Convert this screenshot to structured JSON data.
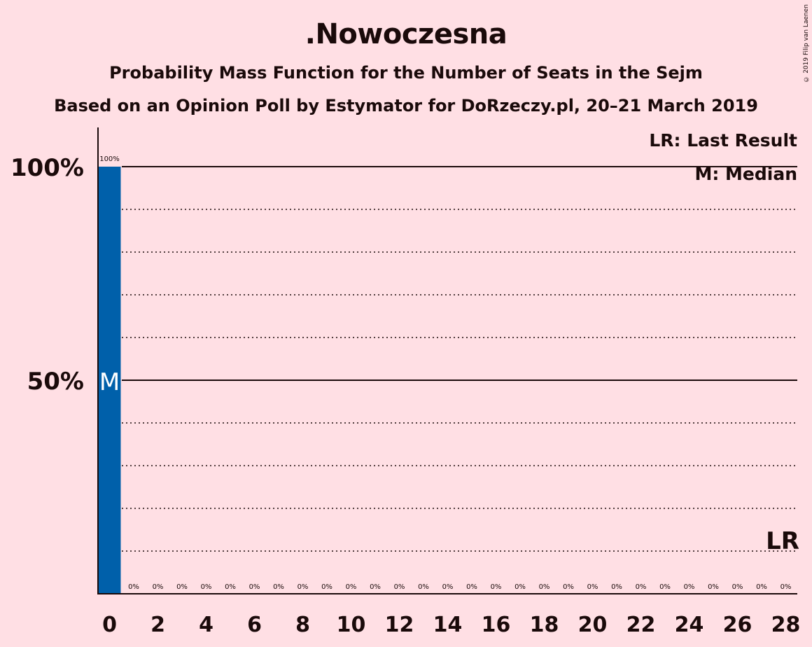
{
  "header": {
    "title": ".Nowoczesna",
    "subtitle": "Probability Mass Function for the Number of Seats in the Sejm",
    "subtitle2": "Based on an Opinion Poll by Estymator for DoRzeczy.pl, 20–21 March 2019",
    "copyright": "© 2019 Filip van Laenen"
  },
  "colors": {
    "background": "#ffdfe4",
    "bar": "#0060aa",
    "text": "#1a0a0a"
  },
  "chart_data": {
    "type": "bar",
    "x": [
      0,
      1,
      2,
      3,
      4,
      5,
      6,
      7,
      8,
      9,
      10,
      11,
      12,
      13,
      14,
      15,
      16,
      17,
      18,
      19,
      20,
      21,
      22,
      23,
      24,
      25,
      26,
      27,
      28
    ],
    "values": [
      100,
      0,
      0,
      0,
      0,
      0,
      0,
      0,
      0,
      0,
      0,
      0,
      0,
      0,
      0,
      0,
      0,
      0,
      0,
      0,
      0,
      0,
      0,
      0,
      0,
      0,
      0,
      0,
      0
    ],
    "value_labels": [
      "100%",
      "0%",
      "0%",
      "0%",
      "0%",
      "0%",
      "0%",
      "0%",
      "0%",
      "0%",
      "0%",
      "0%",
      "0%",
      "0%",
      "0%",
      "0%",
      "0%",
      "0%",
      "0%",
      "0%",
      "0%",
      "0%",
      "0%",
      "0%",
      "0%",
      "0%",
      "0%",
      "0%",
      "0%"
    ],
    "x_tick_labels": [
      "0",
      "2",
      "4",
      "6",
      "8",
      "10",
      "12",
      "14",
      "16",
      "18",
      "20",
      "22",
      "24",
      "26",
      "28"
    ],
    "x_ticks": [
      0,
      2,
      4,
      6,
      8,
      10,
      12,
      14,
      16,
      18,
      20,
      22,
      24,
      26,
      28
    ],
    "y_tick_labels": [
      "50%",
      "100%"
    ],
    "y_ticks": [
      50,
      100
    ],
    "ylim": [
      0,
      100
    ],
    "grid": "dotted every 10%, solid at 50% and 100%",
    "median": 0,
    "median_marker": "M",
    "last_result": 28,
    "last_result_marker": "LR",
    "legend": {
      "placement": "top-right",
      "entries": [
        "LR: Last Result",
        "M: Median"
      ]
    }
  }
}
